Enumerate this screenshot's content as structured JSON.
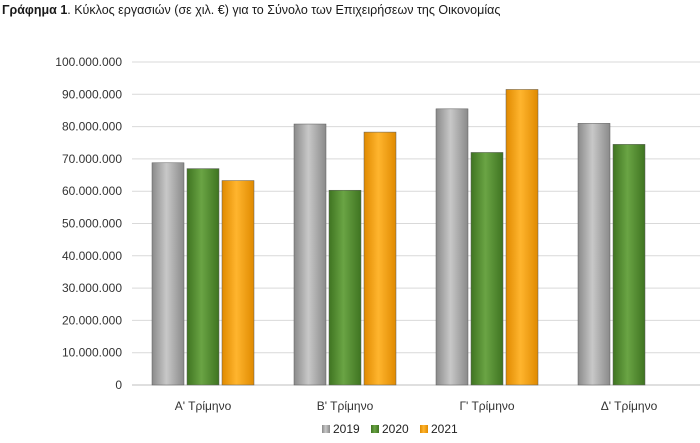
{
  "caption": {
    "label": "Γράφημα 1",
    "text": ".  Κύκλος εργασιών (σε χιλ. €) για το Σύνολο των Επιχειρήσεων της Οικονομίας"
  },
  "colors": {
    "2019": "#9e9e9e",
    "2020": "#4f8a2c",
    "2021": "#f39c12",
    "grid": "#d9d9d9",
    "axis": "#bfbfbf"
  },
  "chart_data": {
    "type": "bar",
    "title": "Κύκλος εργασιών (σε χιλ. €) για το Σύνολο των Επιχειρήσεων της Οικονομίας",
    "categories": [
      "Α' Τρίμηνο",
      "Β' Τρίμηνο",
      "Γ' Τρίμηνο",
      "Δ' Τρίμηνο"
    ],
    "series": [
      {
        "name": "2019",
        "values": [
          68800000,
          80800000,
          85500000,
          81000000
        ]
      },
      {
        "name": "2020",
        "values": [
          67000000,
          60300000,
          72000000,
          74500000
        ]
      },
      {
        "name": "2021",
        "values": [
          63300000,
          78300000,
          91500000,
          null
        ]
      }
    ],
    "ylim": [
      0,
      100000000
    ],
    "yticks": [
      0,
      10000000,
      20000000,
      30000000,
      40000000,
      50000000,
      60000000,
      70000000,
      80000000,
      90000000,
      100000000
    ],
    "ytick_labels": [
      "0",
      "10.000.000",
      "20.000.000",
      "30.000.000",
      "40.000.000",
      "50.000.000",
      "60.000.000",
      "70.000.000",
      "80.000.000",
      "90.000.000",
      "100.000.000"
    ],
    "grid": true,
    "legend_position": "bottom-right",
    "xlabel": "",
    "ylabel": ""
  }
}
